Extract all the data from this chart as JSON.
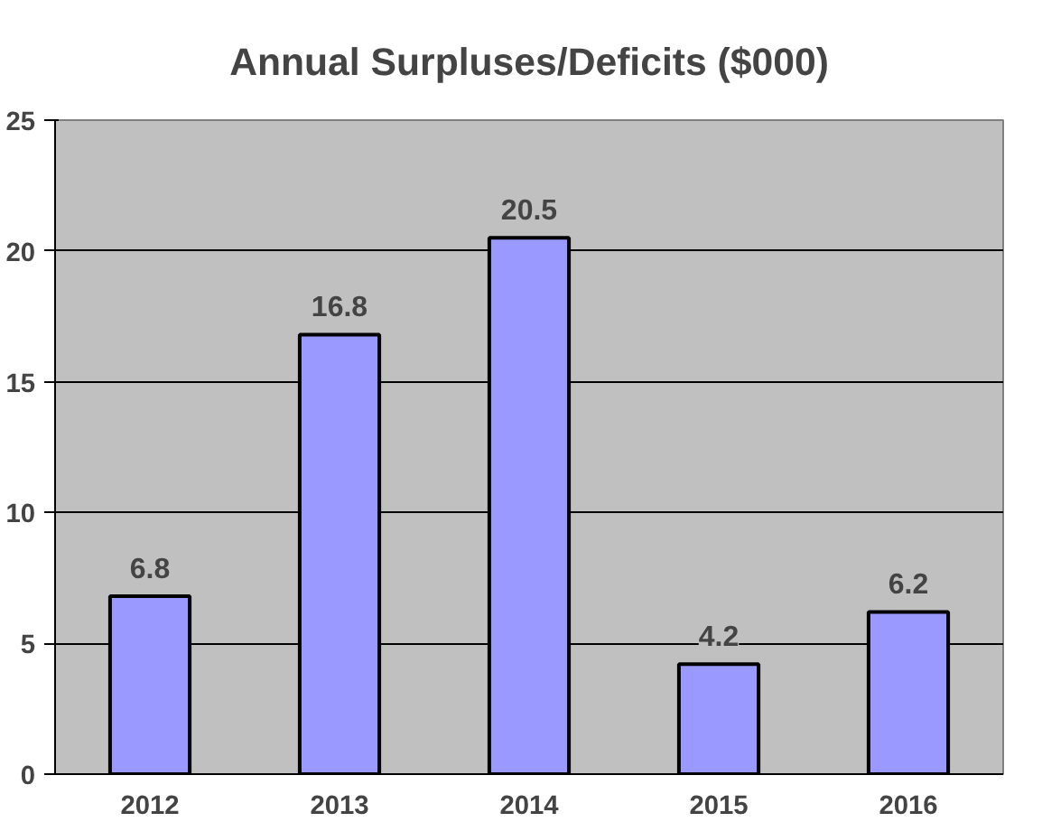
{
  "chart_data": {
    "type": "bar",
    "title": "Annual Surpluses/Deficits ($000)",
    "categories": [
      "2012",
      "2013",
      "2014",
      "2015",
      "2016"
    ],
    "values": [
      6.8,
      16.8,
      20.5,
      4.2,
      6.2
    ],
    "color": "#9999ff",
    "ylim": [
      0,
      25
    ],
    "yticks": [
      0,
      5,
      10,
      15,
      20,
      25
    ],
    "grid": "y",
    "data_labels": true
  }
}
